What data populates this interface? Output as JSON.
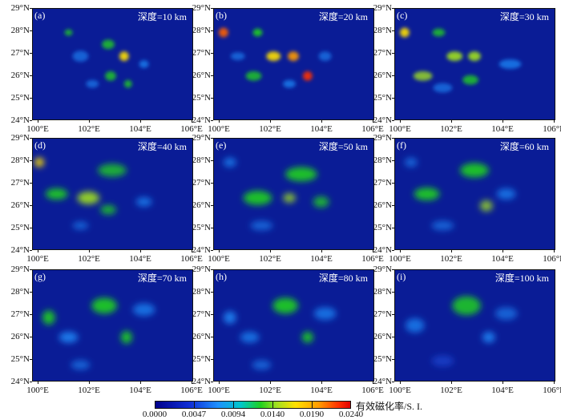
{
  "panels": [
    {
      "letter": "(a)",
      "depth_label": "深度=10 km"
    },
    {
      "letter": "(b)",
      "depth_label": "深度=20 km"
    },
    {
      "letter": "(c)",
      "depth_label": "深度=30 km"
    },
    {
      "letter": "(d)",
      "depth_label": "深度=40 km"
    },
    {
      "letter": "(e)",
      "depth_label": "深度=50 km"
    },
    {
      "letter": "(f)",
      "depth_label": "深度=60 km"
    },
    {
      "letter": "(g)",
      "depth_label": "深度=70 km"
    },
    {
      "letter": "(h)",
      "depth_label": "深度=80 km"
    },
    {
      "letter": "(i)",
      "depth_label": "深度=100 km"
    }
  ],
  "y_ticks": [
    "29°N",
    "28°N",
    "27°N",
    "26°N",
    "25°N",
    "24°N"
  ],
  "x_ticks": [
    "100°E",
    "102°E",
    "104°E",
    "106°E"
  ],
  "colorbar": {
    "title": "有效磁化率/S. I.",
    "ticks": [
      "0.0000",
      "0.0047",
      "0.0094",
      "0.0140",
      "0.0190",
      "0.0240"
    ]
  },
  "colors": {
    "background": "#0a1c96",
    "low": "#1e4fe0",
    "mid": "#20d020",
    "high": "#ffe000",
    "peak": "#e00000"
  }
}
